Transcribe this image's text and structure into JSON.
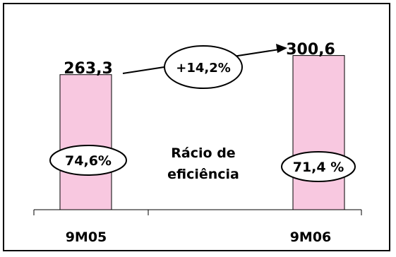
{
  "chart_data": {
    "type": "bar",
    "categories": [
      "9M05",
      "9M06"
    ],
    "values": [
      263.3,
      300.6
    ],
    "value_labels": [
      "263,3",
      "300,6"
    ],
    "ylim": [
      0,
      340
    ],
    "bar_color": "#f8c8e0",
    "growth_label": "+14,2%",
    "inner_labels": [
      "74,6%",
      "71,4 %"
    ],
    "center_label": [
      "Rácio de",
      "eficiência"
    ],
    "grid": false,
    "legend": "none"
  }
}
